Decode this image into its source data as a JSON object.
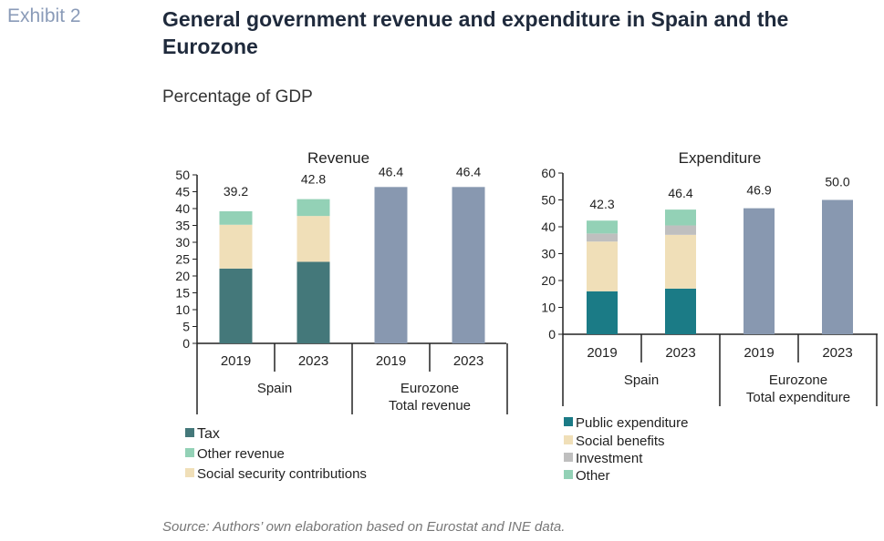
{
  "header": {
    "exhibit": "Exhibit 2",
    "title": "General government revenue and expenditure in Spain and the Eurozone",
    "subtitle": "Percentage of GDP"
  },
  "footer": {
    "source": "Source: Authors’ own elaboration based on Eurostat and INE data."
  },
  "colors": {
    "tax": "#44787a",
    "public_expenditure": "#1b7b86",
    "social": "#f0dfb8",
    "other": "#93d1b6",
    "investment": "#bfbfbf",
    "total": "#8898b0"
  },
  "chart_data": [
    {
      "type": "bar",
      "stacked": true,
      "title": "Revenue",
      "ylim": [
        0,
        50
      ],
      "yticks": [
        0,
        5,
        10,
        15,
        20,
        25,
        30,
        35,
        40,
        45,
        50
      ],
      "categories": [
        "2019",
        "2023",
        "2019",
        "2023"
      ],
      "groups": [
        "Spain",
        "Eurozone\nTotal revenue"
      ],
      "series": [
        {
          "name": "Tax",
          "color_key": "tax",
          "values": [
            22.2,
            24.2,
            null,
            null
          ]
        },
        {
          "name": "Social security contributions",
          "color_key": "social",
          "values": [
            13.0,
            13.6,
            null,
            null
          ]
        },
        {
          "name": "Other revenue",
          "color_key": "other",
          "values": [
            4.0,
            5.0,
            null,
            null
          ]
        },
        {
          "name": "",
          "color_key": "total",
          "values": [
            null,
            null,
            46.4,
            46.4
          ]
        }
      ],
      "totals": [
        "39.2",
        "42.8",
        "46.4",
        "46.4"
      ],
      "legend": [
        "Tax",
        "Other revenue",
        "Social security contributions"
      ],
      "legend_colors": [
        "tax",
        "other",
        "social"
      ]
    },
    {
      "type": "bar",
      "stacked": true,
      "title": "Expenditure",
      "ylim": [
        0,
        60
      ],
      "yticks": [
        0,
        10,
        20,
        30,
        40,
        50,
        60
      ],
      "categories": [
        "2019",
        "2023",
        "2019",
        "2023"
      ],
      "groups": [
        "Spain",
        "Eurozone\nTotal expenditure"
      ],
      "series": [
        {
          "name": "Public expenditure",
          "color_key": "public_expenditure",
          "values": [
            16.0,
            17.0,
            null,
            null
          ]
        },
        {
          "name": "Social benefits",
          "color_key": "social",
          "values": [
            18.5,
            20.0,
            null,
            null
          ]
        },
        {
          "name": "Investment",
          "color_key": "investment",
          "values": [
            3.0,
            3.5,
            null,
            null
          ]
        },
        {
          "name": "Other",
          "color_key": "other",
          "values": [
            4.8,
            5.9,
            null,
            null
          ]
        },
        {
          "name": "",
          "color_key": "total",
          "values": [
            null,
            null,
            46.9,
            50.0
          ]
        }
      ],
      "totals": [
        "42.3",
        "46.4",
        "46.9",
        "50.0"
      ],
      "legend": [
        "Public expenditure",
        "Social benefits",
        "Investment",
        "Other"
      ],
      "legend_colors": [
        "public_expenditure",
        "social",
        "investment",
        "other"
      ]
    }
  ]
}
